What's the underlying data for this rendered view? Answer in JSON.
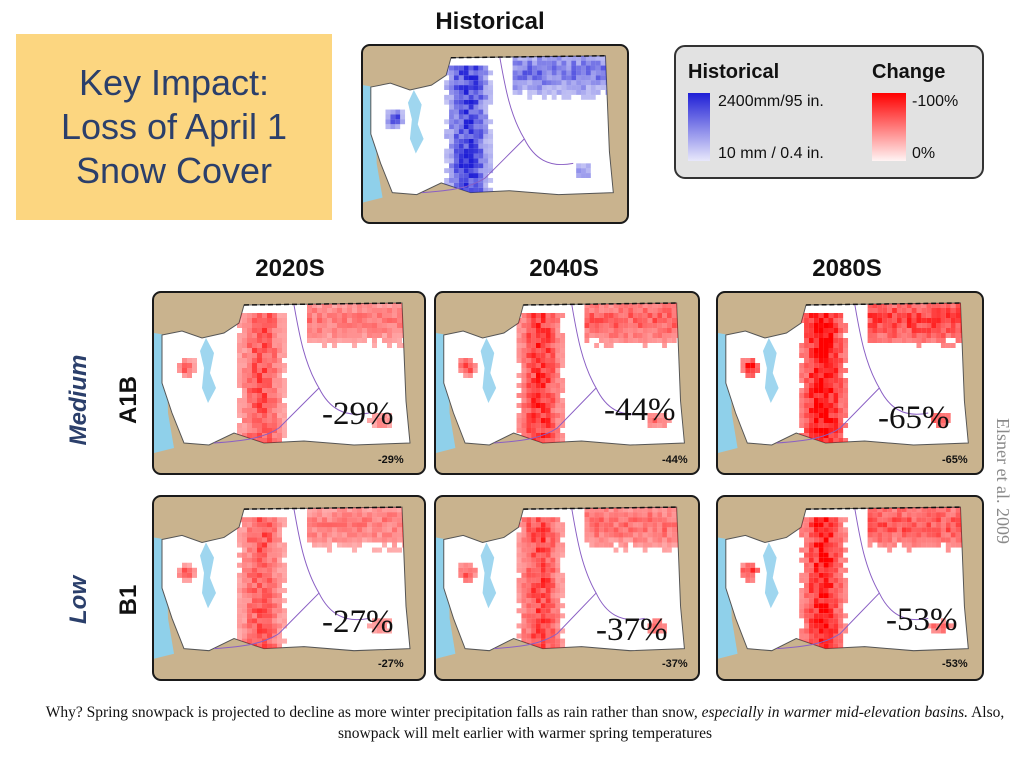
{
  "key_impact": {
    "lines": [
      "Key Impact:",
      "Loss of April 1",
      "Snow Cover"
    ]
  },
  "historical": {
    "title": "Historical"
  },
  "legend": {
    "historical_heading": "Historical",
    "historical_max": "2400mm/95 in.",
    "historical_min": "10 mm / 0.4 in.",
    "change_heading": "Change",
    "change_max": "-100%",
    "change_min": "0%",
    "colors": {
      "historical_high": "#1f1fd6",
      "historical_low": "#e8e8fb",
      "change_high": "#ff0000",
      "change_low": "#fff4f4"
    }
  },
  "columns": [
    "2020S",
    "2040S",
    "2080S"
  ],
  "rows": [
    {
      "scenario": "Medium",
      "model": "A1B",
      "panels": [
        {
          "big": "-29%",
          "small": "-29%",
          "change": 0.29
        },
        {
          "big": "-44%",
          "small": "-44%",
          "change": 0.44
        },
        {
          "big": "-65%",
          "small": "-65%",
          "change": 0.65
        }
      ]
    },
    {
      "scenario": "Low",
      "model": "B1",
      "panels": [
        {
          "big": "-27%",
          "small": "-27%",
          "change": 0.27
        },
        {
          "big": "-37%",
          "small": "-37%",
          "change": 0.37
        },
        {
          "big": "-53%",
          "small": "-53%",
          "change": 0.53
        }
      ]
    }
  ],
  "citation": "Elsner et al. 2009",
  "caption": {
    "part1": "Why? Spring snowpack is projected to decline as more winter precipitation falls as rain rather than snow, ",
    "italic": "especially in warmer mid-elevation basins.",
    "part2": " Also, snowpack will melt earlier with warmer spring temperatures"
  }
}
